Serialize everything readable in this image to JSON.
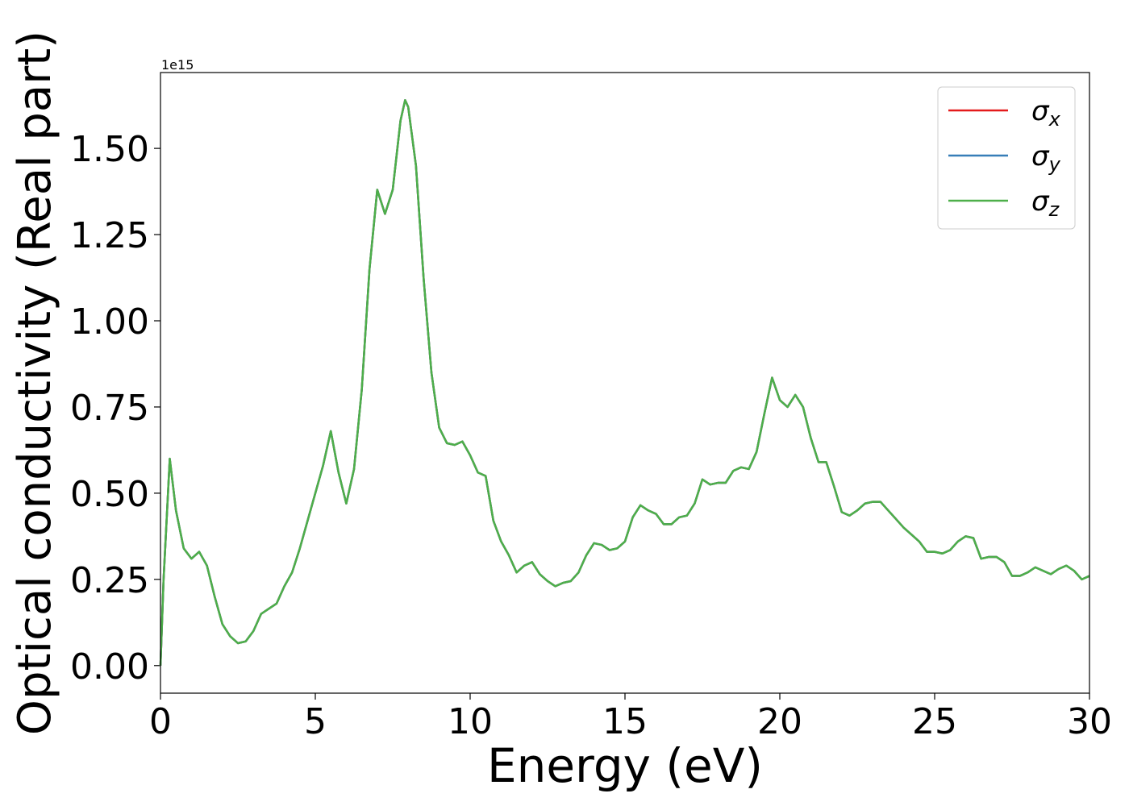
{
  "chart_data": {
    "type": "line",
    "xlabel": "Energy (eV)",
    "ylabel": "Optical conductivity (Real part)",
    "offset_label": "1e15",
    "x": [
      0,
      0.1,
      0.3,
      0.5,
      0.75,
      1,
      1.25,
      1.5,
      1.75,
      2,
      2.25,
      2.5,
      2.75,
      3,
      3.25,
      3.5,
      3.75,
      4,
      4.25,
      4.5,
      4.75,
      5,
      5.25,
      5.5,
      5.75,
      6,
      6.25,
      6.5,
      6.75,
      7,
      7.25,
      7.5,
      7.75,
      7.9,
      8,
      8.25,
      8.5,
      8.75,
      9,
      9.25,
      9.5,
      9.75,
      10,
      10.25,
      10.5,
      10.75,
      11,
      11.25,
      11.5,
      11.75,
      12,
      12.25,
      12.5,
      12.75,
      13,
      13.25,
      13.5,
      13.75,
      14,
      14.25,
      14.5,
      14.75,
      15,
      15.25,
      15.5,
      15.75,
      16,
      16.25,
      16.5,
      16.75,
      17,
      17.25,
      17.5,
      17.75,
      18,
      18.25,
      18.5,
      18.75,
      19,
      19.25,
      19.5,
      19.75,
      20,
      20.25,
      20.5,
      20.75,
      21,
      21.25,
      21.5,
      21.75,
      22,
      22.25,
      22.5,
      22.75,
      23,
      23.25,
      23.5,
      23.75,
      24,
      24.25,
      24.5,
      24.75,
      25,
      25.25,
      25.5,
      25.75,
      26,
      26.25,
      26.5,
      26.75,
      27,
      27.25,
      27.5,
      27.75,
      28,
      28.25,
      28.5,
      28.75,
      29,
      29.25,
      29.5,
      29.75,
      30
    ],
    "series": [
      {
        "name": "σx",
        "color": "#e41a1c",
        "values": [
          0,
          0.25,
          0.6,
          0.45,
          0.34,
          0.31,
          0.33,
          0.29,
          0.2,
          0.12,
          0.085,
          0.065,
          0.07,
          0.1,
          0.15,
          0.165,
          0.18,
          0.23,
          0.27,
          0.34,
          0.42,
          0.5,
          0.58,
          0.68,
          0.56,
          0.47,
          0.57,
          0.8,
          1.15,
          1.38,
          1.31,
          1.38,
          1.58,
          1.64,
          1.62,
          1.45,
          1.12,
          0.85,
          0.69,
          0.645,
          0.64,
          0.65,
          0.61,
          0.56,
          0.55,
          0.42,
          0.36,
          0.32,
          0.27,
          0.29,
          0.3,
          0.265,
          0.245,
          0.23,
          0.24,
          0.245,
          0.27,
          0.32,
          0.355,
          0.35,
          0.335,
          0.34,
          0.36,
          0.43,
          0.465,
          0.45,
          0.44,
          0.41,
          0.41,
          0.43,
          0.435,
          0.47,
          0.54,
          0.525,
          0.53,
          0.53,
          0.565,
          0.575,
          0.57,
          0.62,
          0.73,
          0.835,
          0.77,
          0.75,
          0.785,
          0.75,
          0.66,
          0.59,
          0.59,
          0.52,
          0.445,
          0.435,
          0.45,
          0.47,
          0.475,
          0.475,
          0.45,
          0.425,
          0.4,
          0.38,
          0.36,
          0.33,
          0.33,
          0.325,
          0.335,
          0.36,
          0.375,
          0.37,
          0.31,
          0.315,
          0.315,
          0.3,
          0.26,
          0.26,
          0.27,
          0.285,
          0.275,
          0.265,
          0.28,
          0.29,
          0.275,
          0.25,
          0.26
        ]
      },
      {
        "name": "σy",
        "color": "#377eb8",
        "values": [
          0,
          0.25,
          0.6,
          0.45,
          0.34,
          0.31,
          0.33,
          0.29,
          0.2,
          0.12,
          0.085,
          0.065,
          0.07,
          0.1,
          0.15,
          0.165,
          0.18,
          0.23,
          0.27,
          0.34,
          0.42,
          0.5,
          0.58,
          0.68,
          0.56,
          0.47,
          0.57,
          0.8,
          1.15,
          1.38,
          1.31,
          1.38,
          1.58,
          1.64,
          1.62,
          1.45,
          1.12,
          0.85,
          0.69,
          0.645,
          0.64,
          0.65,
          0.61,
          0.56,
          0.55,
          0.42,
          0.36,
          0.32,
          0.27,
          0.29,
          0.3,
          0.265,
          0.245,
          0.23,
          0.24,
          0.245,
          0.27,
          0.32,
          0.355,
          0.35,
          0.335,
          0.34,
          0.36,
          0.43,
          0.465,
          0.45,
          0.44,
          0.41,
          0.41,
          0.43,
          0.435,
          0.47,
          0.54,
          0.525,
          0.53,
          0.53,
          0.565,
          0.575,
          0.57,
          0.62,
          0.73,
          0.835,
          0.77,
          0.75,
          0.785,
          0.75,
          0.66,
          0.59,
          0.59,
          0.52,
          0.445,
          0.435,
          0.45,
          0.47,
          0.475,
          0.475,
          0.45,
          0.425,
          0.4,
          0.38,
          0.36,
          0.33,
          0.33,
          0.325,
          0.335,
          0.36,
          0.375,
          0.37,
          0.31,
          0.315,
          0.315,
          0.3,
          0.26,
          0.26,
          0.27,
          0.285,
          0.275,
          0.265,
          0.28,
          0.29,
          0.275,
          0.25,
          0.26
        ]
      },
      {
        "name": "σz",
        "color": "#4daf4a",
        "values": [
          0,
          0.25,
          0.6,
          0.45,
          0.34,
          0.31,
          0.33,
          0.29,
          0.2,
          0.12,
          0.085,
          0.065,
          0.07,
          0.1,
          0.15,
          0.165,
          0.18,
          0.23,
          0.27,
          0.34,
          0.42,
          0.5,
          0.58,
          0.68,
          0.56,
          0.47,
          0.57,
          0.8,
          1.15,
          1.38,
          1.31,
          1.38,
          1.58,
          1.64,
          1.62,
          1.45,
          1.12,
          0.85,
          0.69,
          0.645,
          0.64,
          0.65,
          0.61,
          0.56,
          0.55,
          0.42,
          0.36,
          0.32,
          0.27,
          0.29,
          0.3,
          0.265,
          0.245,
          0.23,
          0.24,
          0.245,
          0.27,
          0.32,
          0.355,
          0.35,
          0.335,
          0.34,
          0.36,
          0.43,
          0.465,
          0.45,
          0.44,
          0.41,
          0.41,
          0.43,
          0.435,
          0.47,
          0.54,
          0.525,
          0.53,
          0.53,
          0.565,
          0.575,
          0.57,
          0.62,
          0.73,
          0.835,
          0.77,
          0.75,
          0.785,
          0.75,
          0.66,
          0.59,
          0.59,
          0.52,
          0.445,
          0.435,
          0.45,
          0.47,
          0.475,
          0.475,
          0.45,
          0.425,
          0.4,
          0.38,
          0.36,
          0.33,
          0.33,
          0.325,
          0.335,
          0.36,
          0.375,
          0.37,
          0.31,
          0.315,
          0.315,
          0.3,
          0.26,
          0.26,
          0.27,
          0.285,
          0.275,
          0.265,
          0.28,
          0.29,
          0.275,
          0.25,
          0.26
        ]
      }
    ],
    "xlim": [
      0,
      30
    ],
    "xticks": [
      0,
      5,
      10,
      15,
      20,
      25,
      30
    ],
    "ylim": [
      -0.08,
      1.72
    ],
    "yticks": [
      {
        "value": 0,
        "label": "0.00"
      },
      {
        "value": 0.25,
        "label": "0.25"
      },
      {
        "value": 0.5,
        "label": "0.50"
      },
      {
        "value": 0.75,
        "label": "0.75"
      },
      {
        "value": 1,
        "label": "1.00"
      },
      {
        "value": 1.25,
        "label": "1.25"
      },
      {
        "value": 1.5,
        "label": "1.50"
      }
    ],
    "grid": false,
    "legend_loc": "upper right"
  }
}
